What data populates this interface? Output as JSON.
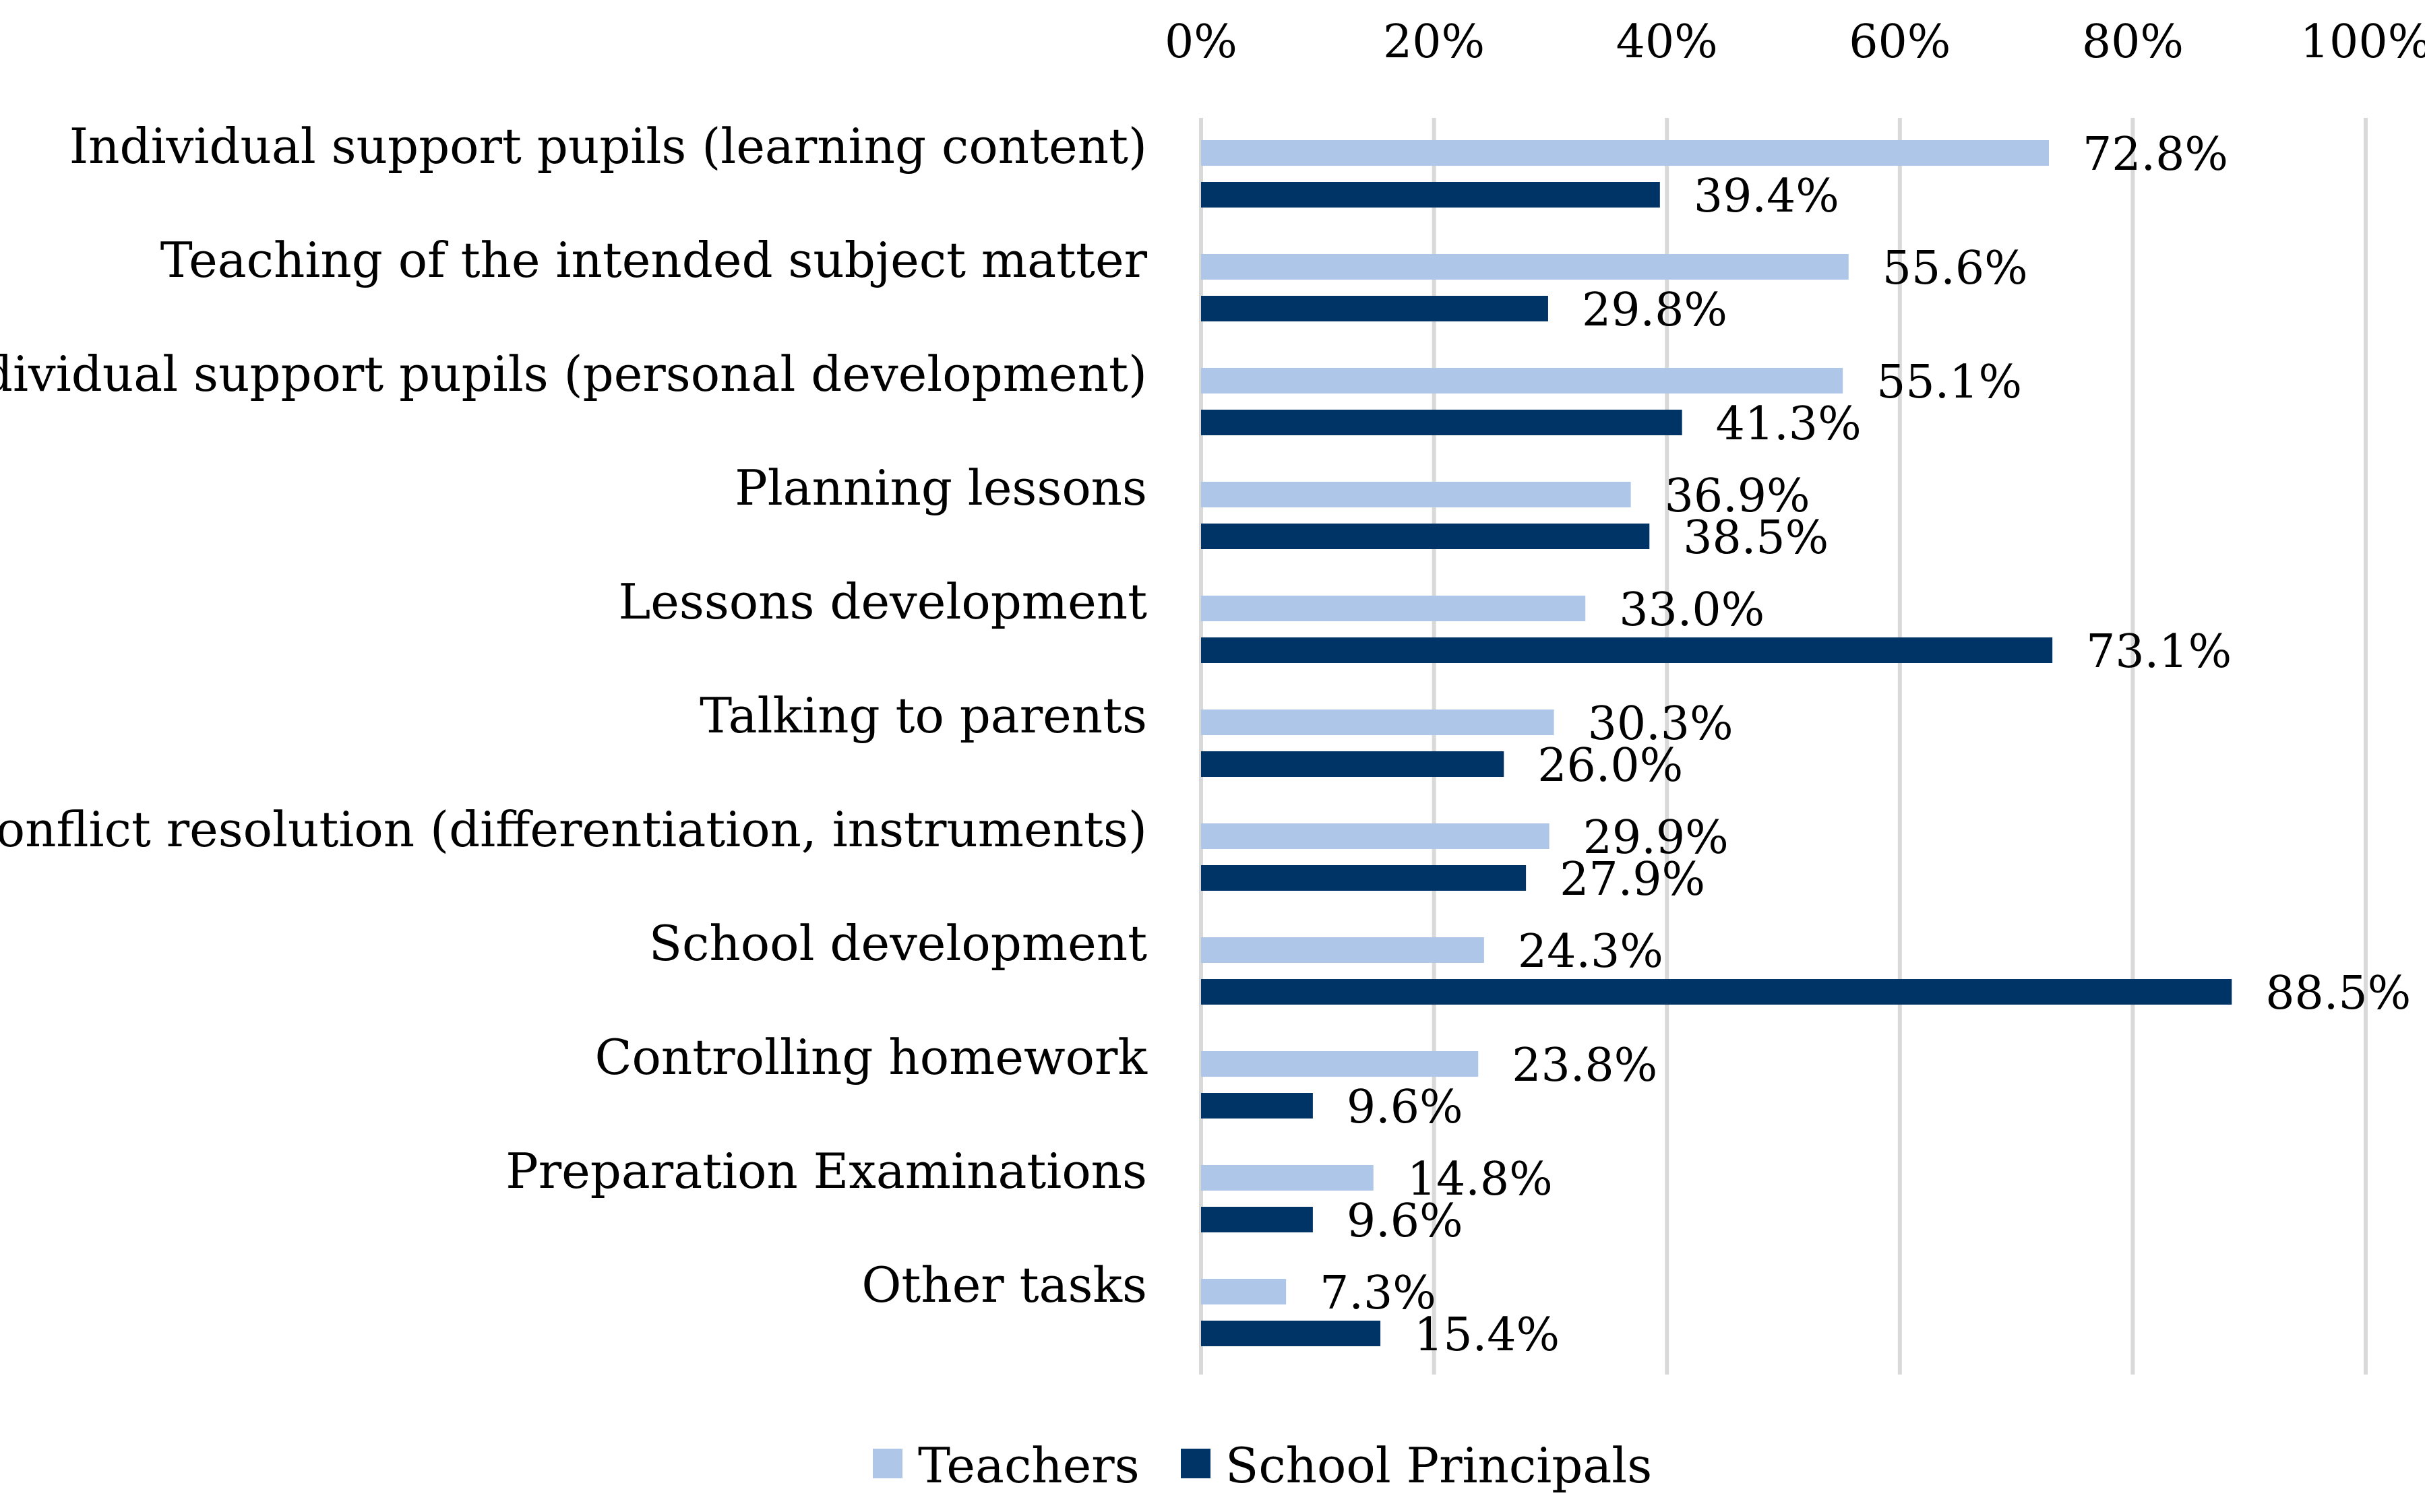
{
  "chart_data": {
    "type": "bar",
    "orientation": "horizontal",
    "title": "",
    "xlabel": "",
    "ylabel": "",
    "xlim": [
      0,
      100
    ],
    "value_unit": "%",
    "grid": true,
    "legend_position": "bottom",
    "x_ticks": [
      "0%",
      "20%",
      "40%",
      "60%",
      "80%",
      "100%"
    ],
    "categories": [
      "Individual support pupils (learning content)",
      "Teaching of the intended subject matter",
      "Individual support pupils (personal development)",
      "Planning lessons",
      "Lessons development",
      "Talking to parents",
      "Conflict resolution (differentiation, instruments)",
      "School development",
      "Controlling homework",
      "Preparation Examinations",
      "Other tasks"
    ],
    "series": [
      {
        "name": "Teachers",
        "color": "#aec6e8",
        "values": [
          72.8,
          55.6,
          55.1,
          36.9,
          33.0,
          30.3,
          29.9,
          24.3,
          23.8,
          14.8,
          7.3
        ],
        "labels": [
          "72.8%",
          "55.6%",
          "55.1%",
          "36.9%",
          "33.0%",
          "30.3%",
          "29.9%",
          "24.3%",
          "23.8%",
          "14.8%",
          "7.3%"
        ]
      },
      {
        "name": "School Principals",
        "color": "#003366",
        "values": [
          39.4,
          29.8,
          41.3,
          38.5,
          73.1,
          26.0,
          27.9,
          88.5,
          9.6,
          9.6,
          15.4
        ],
        "labels": [
          "39.4%",
          "29.8%",
          "41.3%",
          "38.5%",
          "73.1%",
          "26.0%",
          "27.9%",
          "88.5%",
          "9.6%",
          "9.6%",
          "15.4%"
        ]
      }
    ]
  }
}
